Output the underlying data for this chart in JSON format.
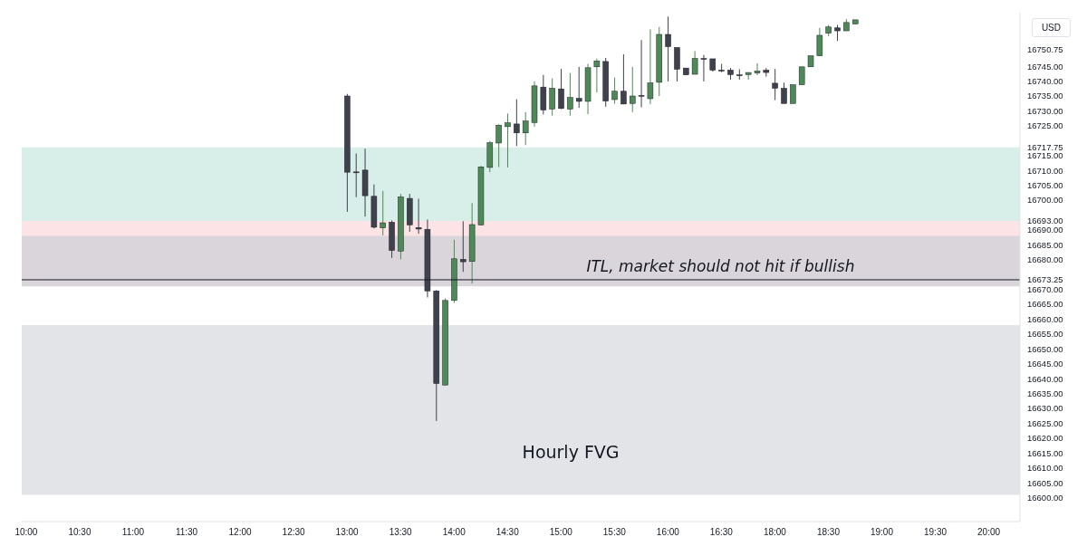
{
  "chart_data": {
    "type": "candlestick",
    "categories": [
      "10:00",
      null,
      null,
      null,
      null,
      null,
      "10:30",
      null,
      null,
      null,
      null,
      null,
      "11:00",
      null,
      null,
      null,
      null,
      null,
      "11:30",
      null,
      null,
      null,
      null,
      null,
      "12:00",
      null,
      null,
      null,
      null,
      null,
      "12:30",
      null,
      null,
      null,
      null,
      null,
      "13:00",
      null,
      null,
      null,
      null,
      null,
      "13:30",
      null,
      null,
      null,
      null,
      null,
      "14:00",
      null,
      null,
      null,
      null,
      null,
      "14:30",
      null,
      null,
      null,
      null,
      null,
      "15:00",
      null,
      null,
      null,
      null,
      null,
      "15:30",
      null,
      null,
      null,
      null,
      null,
      "16:00",
      null,
      null,
      null,
      null,
      null,
      "16:30",
      null,
      null,
      null,
      null,
      null,
      "18:00",
      null,
      null,
      null,
      null,
      null,
      "18:30",
      null,
      null,
      null,
      null,
      null,
      "19:00",
      null,
      null,
      null,
      null,
      null,
      "19:30",
      null,
      null,
      null,
      null,
      null,
      "20:00",
      null,
      null,
      null
    ],
    "ohlc": [
      null,
      null,
      null,
      null,
      null,
      null,
      null,
      null,
      null,
      null,
      null,
      null,
      null,
      null,
      null,
      null,
      null,
      null,
      null,
      null,
      null,
      null,
      null,
      null,
      null,
      null,
      null,
      null,
      null,
      null,
      null,
      null,
      null,
      null,
      null,
      null,
      [
        16735.0,
        16735.7,
        16696.1,
        16709.4
      ],
      [
        16709.5,
        16715.7,
        16701.0,
        16709.5
      ],
      [
        16710.1,
        16717.3,
        16694.5,
        16701.5
      ],
      [
        16701.3,
        16705.3,
        16690.5,
        16690.9
      ],
      [
        16690.7,
        16703.1,
        16688.2,
        16692.4
      ],
      [
        16692.6,
        16693.2,
        16680.6,
        16683.1
      ],
      [
        16682.9,
        16702.1,
        16680.1,
        16701.1
      ],
      [
        16700.6,
        16702.1,
        16689.4,
        16691.7
      ],
      [
        16690.8,
        16700.5,
        16688.7,
        16690.3
      ],
      [
        16690.2,
        16693.5,
        16667.3,
        16669.5
      ],
      [
        16669.5,
        16669.8,
        16625.8,
        16638.4
      ],
      [
        16637.9,
        16667.0,
        16637.7,
        16666.3
      ],
      [
        16666.3,
        16686.7,
        16665.5,
        16680.3
      ],
      [
        16680.1,
        16692.9,
        16675.9,
        16679.3
      ],
      [
        16679.4,
        16699.0,
        16672.0,
        16691.8
      ],
      [
        16691.7,
        16711.5,
        16691.5,
        16711.2
      ],
      [
        16711.0,
        16719.9,
        16709.4,
        16719.3
      ],
      [
        16719.2,
        16725.5,
        16711.1,
        16725.2
      ],
      [
        16724.7,
        16729.1,
        16711.0,
        16726.0
      ],
      [
        16725.6,
        16733.9,
        16718.2,
        16722.6
      ],
      [
        16722.6,
        16729.6,
        16718.5,
        16726.6
      ],
      [
        16726.1,
        16739.9,
        16724.7,
        16738.4
      ],
      [
        16738.0,
        16742.1,
        16728.8,
        16730.3
      ],
      [
        16730.6,
        16740.9,
        16728.4,
        16737.6
      ],
      [
        16737.4,
        16744.1,
        16730.6,
        16730.8
      ],
      [
        16730.6,
        16742.7,
        16728.4,
        16734.5
      ],
      [
        16734.2,
        16744.8,
        16731.0,
        16733.2
      ],
      [
        16733.2,
        16745.8,
        16728.9,
        16744.5
      ],
      [
        16744.8,
        16747.6,
        16736.2,
        16746.8
      ],
      [
        16746.6,
        16747.8,
        16731.4,
        16733.3
      ],
      [
        16733.8,
        16741.2,
        16732.4,
        16736.6
      ],
      [
        16736.6,
        16749.0,
        16732.3,
        16732.3
      ],
      [
        16732.5,
        16744.8,
        16729.6,
        16735.0
      ],
      [
        16735.2,
        16753.8,
        16731.2,
        16735.2
      ],
      [
        16734.1,
        16757.4,
        16732.3,
        16739.4
      ],
      [
        16739.6,
        16758.2,
        16735.0,
        16755.7
      ],
      [
        16755.7,
        16761.7,
        16739.9,
        16751.6
      ],
      [
        16751.3,
        16751.3,
        16739.9,
        16744.0
      ],
      [
        16744.4,
        16744.4,
        16742.1,
        16742.1
      ],
      [
        16742.3,
        16750.1,
        16742.3,
        16747.6
      ],
      [
        16747.6,
        16748.8,
        16739.9,
        16747.6
      ],
      [
        16747.5,
        16747.5,
        16743.2,
        16743.7
      ],
      [
        16743.7,
        16745.8,
        16743.0,
        16743.7
      ],
      [
        16743.7,
        16744.4,
        16740.5,
        16742.2
      ],
      [
        16742.1,
        16744.0,
        16740.5,
        16741.8
      ],
      [
        16742.2,
        16742.9,
        16740.5,
        16742.9
      ],
      [
        16742.7,
        16746.0,
        16742.0,
        16743.4
      ],
      [
        16743.7,
        16744.4,
        16741.5,
        16742.9
      ],
      [
        16739.3,
        16744.1,
        16733.6,
        16737.6
      ],
      [
        16737.6,
        16739.5,
        16732.5,
        16732.5
      ],
      [
        16732.5,
        16738.8,
        16732.5,
        16738.8
      ],
      [
        16738.8,
        16744.8,
        16738.8,
        16744.8
      ],
      [
        16744.8,
        16748.5,
        16744.8,
        16748.5
      ],
      [
        16748.5,
        16757.9,
        16748.5,
        16755.4
      ],
      [
        16756.1,
        16758.9,
        16755.1,
        16758.2
      ],
      [
        16757.9,
        16758.9,
        16753.5,
        16756.9
      ],
      [
        16756.9,
        16760.9,
        16756.9,
        16759.7
      ],
      [
        16759.2,
        16760.6,
        16759.2,
        16760.6
      ],
      null,
      null,
      null,
      null,
      null,
      null,
      null,
      null,
      null,
      null,
      null,
      null,
      null,
      null,
      null,
      null,
      null,
      null
    ],
    "colors": [
      null,
      null,
      null,
      null,
      null,
      null,
      null,
      null,
      null,
      null,
      null,
      null,
      null,
      null,
      null,
      null,
      null,
      null,
      null,
      null,
      null,
      null,
      null,
      null,
      null,
      null,
      null,
      null,
      null,
      null,
      null,
      null,
      null,
      null,
      null,
      null,
      "#3f414c",
      "#3f414c",
      "#3f414c",
      "#3f414c",
      "#4e8a57",
      "#3f414c",
      "#4e8a57",
      "#3f414c",
      "#3f414c",
      "#3f414c",
      "#3f414c",
      "#4e8a57",
      "#4e8a57",
      "#3f414c",
      "#4e8a57",
      "#4e8a57",
      "#4e8a57",
      "#4e8a57",
      "#4e8a57",
      "#3f414c",
      "#4e8a57",
      "#4e8a57",
      "#3f414c",
      "#4e8a57",
      "#3f414c",
      "#4e8a57",
      "#3f414c",
      "#4e8a57",
      "#4e8a57",
      "#3f414c",
      "#4e8a57",
      "#3f414c",
      "#4e8a57",
      "#3f414c",
      "#4e8a57",
      "#4e8a57",
      "#3f414c",
      "#3f414c",
      "#3f414c",
      "#4e8a57",
      "#3f414c",
      "#3f414c",
      "#3f414c",
      "#3f414c",
      "#3f414c",
      "#4e8a57",
      "#4e8a57",
      "#3f414c",
      "#3f414c",
      "#3f414c",
      "#4e8a57",
      "#4e8a57",
      "#4e8a57",
      "#4e8a57",
      "#4e8a57",
      "#3f414c",
      "#4e8a57",
      "#4e8a57",
      null,
      null,
      null,
      null,
      null,
      null,
      null,
      null,
      null,
      null,
      null,
      null,
      null,
      null,
      null,
      null,
      null,
      null
    ],
    "ylim": [
      16592,
      16763
    ],
    "yticks": [
      {
        "value": 16600,
        "label": "16600.00"
      },
      {
        "value": 16605,
        "label": "16605.00"
      },
      {
        "value": 16610,
        "label": "16610.00"
      },
      {
        "value": 16615,
        "label": "16615.00"
      },
      {
        "value": 16620,
        "label": "16620.00"
      },
      {
        "value": 16625,
        "label": "16625.00"
      },
      {
        "value": 16630,
        "label": "16630.00"
      },
      {
        "value": 16635,
        "label": "16635.00"
      },
      {
        "value": 16640,
        "label": "16640.00"
      },
      {
        "value": 16645,
        "label": "16645.00"
      },
      {
        "value": 16650,
        "label": "16650.00"
      },
      {
        "value": 16655,
        "label": "16655.00"
      },
      {
        "value": 16660,
        "label": "16660.00"
      },
      {
        "value": 16665,
        "label": "16665.00"
      },
      {
        "value": 16670,
        "label": "16670.00"
      },
      {
        "value": 16673.25,
        "label": "16673.25"
      },
      {
        "value": 16680,
        "label": "16680.00"
      },
      {
        "value": 16685,
        "label": "16685.00"
      },
      {
        "value": 16690,
        "label": "16690.00"
      },
      {
        "value": 16693,
        "label": "16693.00"
      },
      {
        "value": 16700,
        "label": "16700.00"
      },
      {
        "value": 16705,
        "label": "16705.00"
      },
      {
        "value": 16710,
        "label": "16710.00"
      },
      {
        "value": 16715,
        "label": "16715.00"
      },
      {
        "value": 16717.75,
        "label": "16717.75"
      },
      {
        "value": 16725,
        "label": "16725.00"
      },
      {
        "value": 16730,
        "label": "16730.00"
      },
      {
        "value": 16735,
        "label": "16735.00"
      },
      {
        "value": 16740,
        "label": "16740.00"
      },
      {
        "value": 16745,
        "label": "16745.00"
      },
      {
        "value": 16750.75,
        "label": "16750.75"
      }
    ],
    "bands": [
      {
        "axis": "y",
        "from": 16601,
        "to": 16658,
        "label": "Hourly FVG",
        "color": "#e3e4e8"
      },
      {
        "axis": "y",
        "from": 16693,
        "to": 16717.75,
        "color": "#d7eee9"
      },
      {
        "axis": "y",
        "from": 16673.25,
        "to": 16693,
        "color": "#fce3e5"
      },
      {
        "axis": "y",
        "from": 16671,
        "to": 16688,
        "color": "#d9d5da"
      }
    ],
    "ref_lines": [
      {
        "axis": "y",
        "value": 16673.25,
        "label": "ITL, market should not hit if bullish",
        "color": "#131722"
      }
    ],
    "annotations": [
      "USD"
    ]
  }
}
